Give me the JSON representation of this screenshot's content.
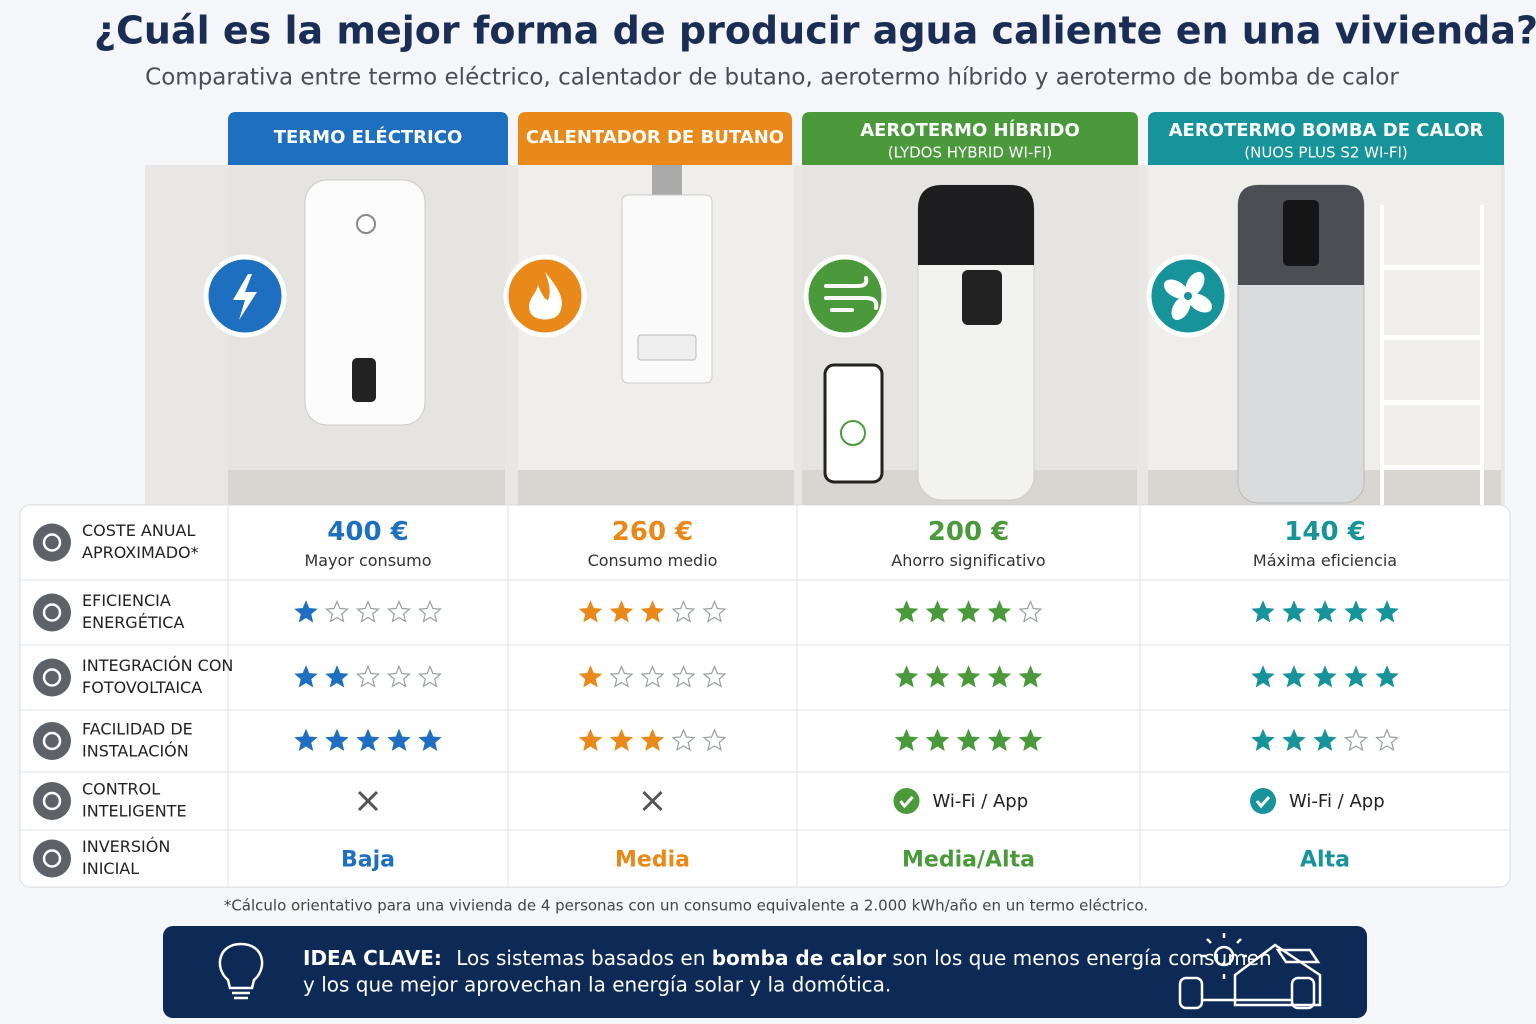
{
  "header": {
    "title": "¿Cuál es la mejor forma de producir agua caliente en una vivienda?",
    "subtitle": "Comparativa entre termo eléctrico, calentador de butano, aerotermo híbrido y aerotermo de bomba de calor"
  },
  "columns": [
    {
      "title": "TERMO ELÉCTRICO",
      "color": "#1f6fc0"
    },
    {
      "title": "CALENTADOR DE BUTANO",
      "color": "#e8891a"
    },
    {
      "title": "AEROTERMO HÍBRIDO",
      "subtitle": "(LYDOS HYBRID WI-FI)",
      "color": "#4a9a3c"
    },
    {
      "title": "AEROTERMO BOMBA DE CALOR",
      "subtitle": "(NUOS PLUS S2  WI-FI)",
      "color": "#17949a"
    }
  ],
  "table": {
    "rating_max": 5,
    "rows": [
      {
        "label": [
          "COSTE ANUAL",
          "APROXIMADO*"
        ],
        "kind": "cost",
        "cells": [
          {
            "value": "400 €",
            "note": "Mayor consumo"
          },
          {
            "value": "260 €",
            "note": "Consumo medio"
          },
          {
            "value": "200 €",
            "note": "Ahorro significativo"
          },
          {
            "value": "140 €",
            "note": "Máxima eficiencia"
          }
        ]
      },
      {
        "label": [
          "EFICIENCIA",
          "ENERGÉTICA"
        ],
        "kind": "rating",
        "cells": [
          1,
          3,
          4,
          5
        ]
      },
      {
        "label": [
          "INTEGRACIÓN CON",
          "FOTOVOLTAICA"
        ],
        "kind": "rating",
        "cells": [
          2,
          1,
          5,
          5
        ]
      },
      {
        "label": [
          "FACILIDAD DE",
          "INSTALACIÓN"
        ],
        "kind": "rating",
        "cells": [
          5,
          3,
          5,
          3
        ]
      },
      {
        "label": [
          "CONTROL",
          "INTELIGENTE"
        ],
        "kind": "check",
        "cells": [
          {
            "check": false
          },
          {
            "check": false
          },
          {
            "check": true,
            "text": "Wi-Fi / App"
          },
          {
            "check": true,
            "text": "Wi-Fi / App"
          }
        ]
      },
      {
        "label": [
          "INVERSIÓN",
          "INICIAL"
        ],
        "kind": "text",
        "cells": [
          "Baja",
          "Media",
          "Media/Alta",
          "Alta"
        ]
      }
    ]
  },
  "footnote": "*Cálculo orientativo para una vivienda de 4 personas con un consumo equivalente a 2.000 kWh/año en un termo eléctrico.",
  "key_idea": {
    "label": "IDEA CLAVE:",
    "parts": [
      "Los sistemas basados en ",
      "bomba de calor",
      " son los que menos energía consumen"
    ],
    "line2": "y los que mejor aprovechan la energía solar y la domótica."
  }
}
